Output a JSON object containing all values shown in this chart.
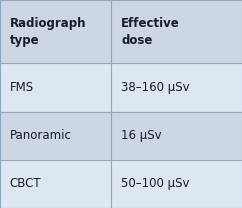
{
  "header": [
    "Radiograph\ntype",
    "Effective\ndose"
  ],
  "rows": [
    [
      "FMS",
      "38–160 μSv"
    ],
    [
      "Panoramic",
      "16 μSv"
    ],
    [
      "CBCT",
      "50–100 μSv"
    ]
  ],
  "header_bg": "#ccd7e3",
  "row_bg_light": "#dde7f0",
  "row_bg_dark": "#ccd7e3",
  "line_color": "#8fa8bb",
  "header_fontsize": 8.5,
  "row_fontsize": 8.5,
  "col_split": 0.46,
  "figsize": [
    2.42,
    2.08
  ],
  "dpi": 100
}
